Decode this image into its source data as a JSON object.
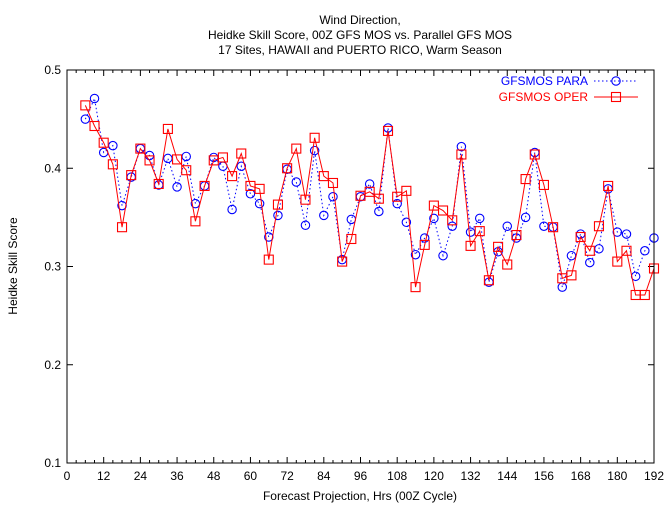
{
  "chart_data": {
    "type": "line",
    "title": [
      "Wind Direction,",
      "Heidke Skill Score, 00Z GFS MOS vs. Parallel GFS MOS",
      "17 Sites, HAWAII and PUERTO RICO, Warm Season"
    ],
    "xlabel": "Forecast Projection, Hrs (00Z Cycle)",
    "ylabel": "Heidke Skill Score",
    "xlim": [
      0,
      192
    ],
    "ylim": [
      0.1,
      0.5
    ],
    "xticks": [
      0,
      12,
      24,
      36,
      48,
      60,
      72,
      84,
      96,
      108,
      120,
      132,
      144,
      156,
      168,
      180,
      192
    ],
    "yticks": [
      0.1,
      0.2,
      0.3,
      0.4,
      0.5
    ],
    "xtick_labels": [
      "0",
      "12",
      "24",
      "36",
      "48",
      "60",
      "72",
      "84",
      "96",
      "108",
      "120",
      "132",
      "144",
      "156",
      "168",
      "180",
      "192"
    ],
    "ytick_labels": [
      "0.1",
      "0.2",
      "0.3",
      "0.4",
      "0.5"
    ],
    "legend_position": "top-right",
    "x": [
      6,
      9,
      12,
      15,
      18,
      21,
      24,
      27,
      30,
      33,
      36,
      39,
      42,
      45,
      48,
      51,
      54,
      57,
      60,
      63,
      66,
      69,
      72,
      75,
      78,
      81,
      84,
      87,
      90,
      93,
      96,
      99,
      102,
      105,
      108,
      111,
      114,
      117,
      120,
      123,
      126,
      129,
      132,
      135,
      138,
      141,
      144,
      147,
      150,
      153,
      156,
      159,
      162,
      165,
      168,
      171,
      174,
      177,
      180,
      183,
      186,
      189,
      192
    ],
    "series": [
      {
        "name": "GFSMOS PARA",
        "color": "#0000ff",
        "line_style": "dotted",
        "marker": "circle",
        "values": [
          0.45,
          0.471,
          0.416,
          0.423,
          0.362,
          0.391,
          0.42,
          0.413,
          0.383,
          0.41,
          0.381,
          0.412,
          0.364,
          0.382,
          0.411,
          0.402,
          0.358,
          0.402,
          0.374,
          0.364,
          0.33,
          0.352,
          0.399,
          0.386,
          0.342,
          0.418,
          0.352,
          0.371,
          0.307,
          0.348,
          0.371,
          0.384,
          0.356,
          0.441,
          0.364,
          0.345,
          0.312,
          0.329,
          0.349,
          0.311,
          0.341,
          0.422,
          0.335,
          0.349,
          0.284,
          0.315,
          0.341,
          0.329,
          0.35,
          0.416,
          0.341,
          0.34,
          0.279,
          0.311,
          0.333,
          0.304,
          0.318,
          0.379,
          0.335,
          0.333,
          0.29,
          0.316,
          0.329
        ]
      },
      {
        "name": "GFSMOS OPER",
        "color": "#ff0000",
        "line_style": "solid",
        "marker": "square",
        "values": [
          0.464,
          0.443,
          0.426,
          0.404,
          0.34,
          0.393,
          0.42,
          0.408,
          0.384,
          0.44,
          0.409,
          0.398,
          0.346,
          0.382,
          0.408,
          0.411,
          0.392,
          0.415,
          0.382,
          0.379,
          0.307,
          0.363,
          0.4,
          0.42,
          0.368,
          0.431,
          0.392,
          0.385,
          0.305,
          0.328,
          0.372,
          0.376,
          0.369,
          0.438,
          0.371,
          0.377,
          0.279,
          0.322,
          0.362,
          0.357,
          0.347,
          0.414,
          0.321,
          0.336,
          0.286,
          0.32,
          0.302,
          0.332,
          0.389,
          0.414,
          0.383,
          0.34,
          0.288,
          0.291,
          0.33,
          0.316,
          0.341,
          0.382,
          0.305,
          0.316,
          0.271,
          0.271,
          0.298
        ]
      }
    ]
  }
}
